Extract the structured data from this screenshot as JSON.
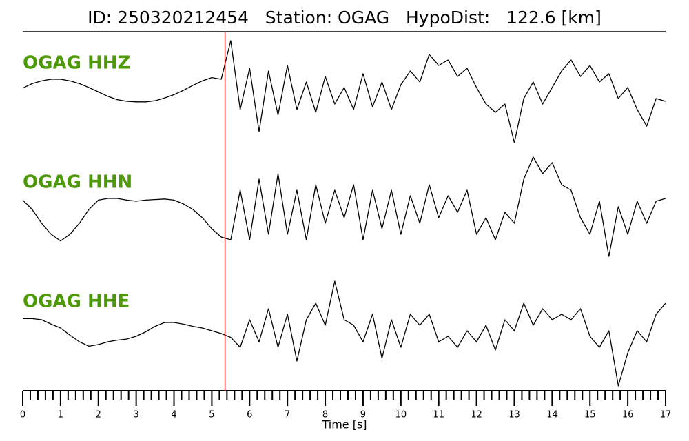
{
  "chart_data": {
    "type": "line",
    "title": "ID: 250320212454   Station: OGAG   HypoDist:   122.6 [km]",
    "xlabel": "Time [s]",
    "xlim": [
      0,
      17
    ],
    "xticks": [
      0,
      1,
      2,
      3,
      4,
      5,
      6,
      7,
      8,
      9,
      10,
      11,
      12,
      13,
      14,
      15,
      16,
      17
    ],
    "minor_ticks_per_unit": 5,
    "ylim": [
      -1,
      1
    ],
    "pick_time": 5.35,
    "pick_color": "#e8262b",
    "label_color": "#4e9a06",
    "x": [
      0,
      0.25,
      0.5,
      0.75,
      1,
      1.25,
      1.5,
      1.75,
      2,
      2.25,
      2.5,
      2.75,
      3,
      3.25,
      3.5,
      3.75,
      4,
      4.25,
      4.5,
      4.75,
      5,
      5.25,
      5.5,
      5.75,
      6,
      6.25,
      6.5,
      6.75,
      7,
      7.25,
      7.5,
      7.75,
      8,
      8.25,
      8.5,
      8.75,
      9,
      9.25,
      9.5,
      9.75,
      10,
      10.25,
      10.5,
      10.75,
      11,
      11.25,
      11.5,
      11.75,
      12,
      12.25,
      12.5,
      12.75,
      13,
      13.25,
      13.5,
      13.75,
      14,
      14.25,
      14.5,
      14.75,
      15,
      15.25,
      15.5,
      15.75,
      16,
      16.25,
      16.5,
      16.75,
      17
    ],
    "series": [
      {
        "name": "OGAG HHZ",
        "color": "#000000",
        "values": [
          0.09,
          0.17,
          0.22,
          0.25,
          0.25,
          0.22,
          0.17,
          0.1,
          0.02,
          -0.06,
          -0.12,
          -0.15,
          -0.16,
          -0.16,
          -0.14,
          -0.09,
          -0.03,
          0.05,
          0.14,
          0.22,
          0.28,
          0.25,
          0.95,
          -0.3,
          0.45,
          -0.7,
          0.4,
          -0.4,
          0.5,
          -0.3,
          0.2,
          -0.35,
          0.3,
          -0.2,
          0.1,
          -0.3,
          0.35,
          -0.25,
          0.2,
          -0.3,
          0.15,
          0.4,
          0.2,
          0.7,
          0.5,
          0.6,
          0.3,
          0.45,
          0.1,
          -0.2,
          -0.35,
          -0.2,
          -0.9,
          -0.1,
          0.2,
          -0.2,
          0.1,
          0.4,
          0.6,
          0.3,
          0.5,
          0.2,
          0.35,
          -0.1,
          0.1,
          -0.3,
          -0.6,
          -0.1,
          -0.15
        ]
      },
      {
        "name": "OGAG HHN",
        "color": "#000000",
        "values": [
          0.12,
          -0.05,
          -0.3,
          -0.5,
          -0.62,
          -0.5,
          -0.3,
          -0.05,
          0.12,
          0.15,
          0.15,
          0.12,
          0.1,
          0.12,
          0.13,
          0.14,
          0.12,
          0.05,
          -0.05,
          -0.2,
          -0.4,
          -0.55,
          -0.6,
          0.3,
          -0.6,
          0.5,
          -0.5,
          0.6,
          -0.5,
          0.3,
          -0.6,
          0.4,
          -0.3,
          0.3,
          -0.2,
          0.4,
          -0.6,
          0.3,
          -0.4,
          0.3,
          -0.5,
          0.2,
          -0.3,
          0.4,
          -0.2,
          0.2,
          -0.1,
          0.3,
          -0.5,
          -0.2,
          -0.6,
          -0.1,
          -0.3,
          0.5,
          0.9,
          0.6,
          0.8,
          0.4,
          0.3,
          -0.2,
          -0.5,
          0.1,
          -0.9,
          0.0,
          -0.5,
          0.1,
          -0.3,
          0.1,
          0.15
        ]
      },
      {
        "name": "OGAG HHE",
        "color": "#000000",
        "values": [
          0.22,
          0.22,
          0.2,
          0.12,
          0.05,
          -0.08,
          -0.2,
          -0.28,
          -0.25,
          -0.2,
          -0.17,
          -0.15,
          -0.1,
          -0.02,
          0.08,
          0.15,
          0.15,
          0.12,
          0.08,
          0.05,
          0.0,
          -0.05,
          -0.12,
          -0.3,
          0.2,
          -0.2,
          0.4,
          -0.3,
          0.3,
          -0.55,
          0.2,
          0.5,
          0.1,
          0.9,
          0.2,
          0.1,
          -0.2,
          0.3,
          -0.5,
          0.2,
          -0.3,
          0.3,
          0.1,
          0.3,
          -0.2,
          -0.1,
          -0.3,
          0.0,
          -0.2,
          0.1,
          -0.35,
          0.2,
          0.0,
          0.5,
          0.1,
          0.4,
          0.2,
          0.3,
          0.2,
          0.4,
          -0.1,
          -0.3,
          0.0,
          -1.0,
          -0.4,
          0.0,
          -0.2,
          0.3,
          0.5
        ]
      }
    ]
  }
}
